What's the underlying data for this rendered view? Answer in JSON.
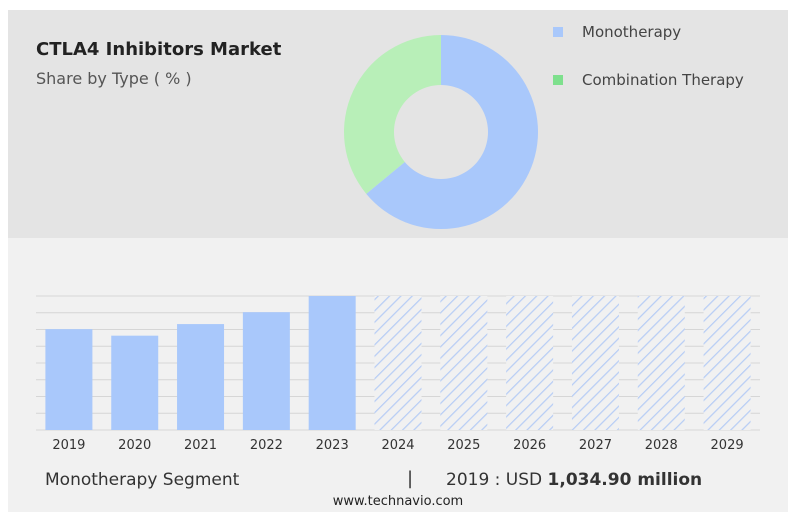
{
  "header": {
    "title": "CTLA4 Inhibitors Market",
    "subtitle": "Share by Type ( % )"
  },
  "colors": {
    "monotherapy": "#a9c8fb",
    "combination": "#b8efb8",
    "legend_combination": "#7ee08d",
    "hatch": "#b7cdf5"
  },
  "chart_data": [
    {
      "type": "pie",
      "hole": true,
      "categories": [
        "Monotherapy",
        "Combination Therapy"
      ],
      "values": [
        64,
        36
      ],
      "legend_position": "top-right"
    },
    {
      "type": "bar",
      "categories": [
        "2019",
        "2020",
        "2021",
        "2022",
        "2023",
        "2024",
        "2025",
        "2026",
        "2027",
        "2028",
        "2029"
      ],
      "values": [
        1034.9,
        968,
        1087,
        1209,
        1375,
        null,
        null,
        null,
        null,
        null,
        null
      ],
      "forecast_from": "2024",
      "ylim": [
        0,
        1375
      ],
      "grid": true
    }
  ],
  "footer": {
    "segment_label": "Monotherapy Segment",
    "separator": "|",
    "value_prefix": "2019 : USD",
    "value_bold": "1,034.90 million",
    "site": "www.technavio.com"
  }
}
